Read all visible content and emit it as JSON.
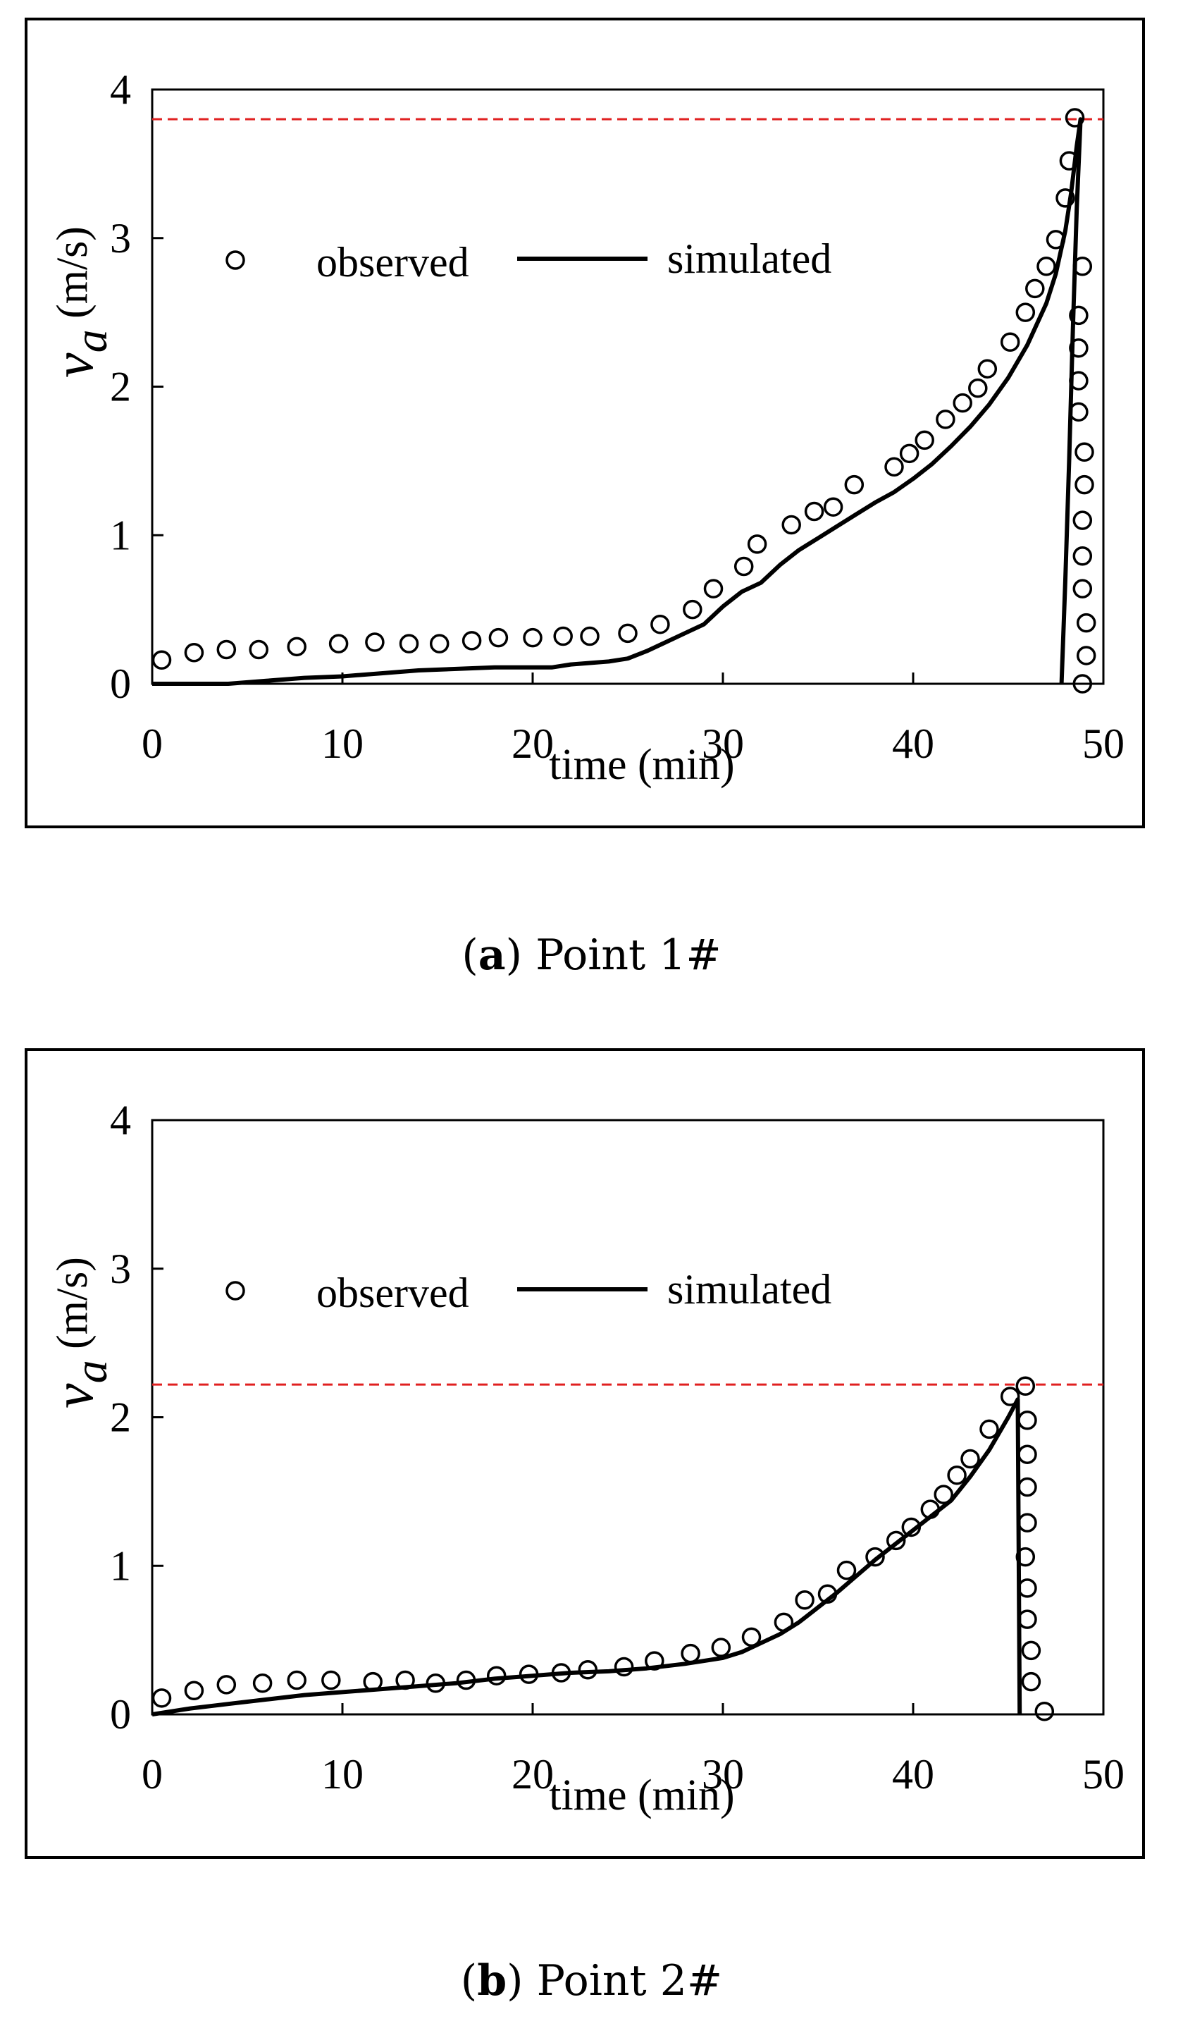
{
  "chart_data": [
    {
      "id": "a",
      "type": "scatter",
      "caption": {
        "open": "(",
        "tag": "a",
        "close": ")",
        "text": " Point 1#"
      },
      "xlabel": "time (min)",
      "ylabel_symbol": "v",
      "ylabel_sub": "a",
      "ylabel_unit": " (m/s)",
      "xlim": [
        0,
        50
      ],
      "ylim": [
        0,
        4
      ],
      "xticks": [
        0,
        10,
        20,
        30,
        40,
        50
      ],
      "yticks": [
        0,
        1,
        2,
        3,
        4
      ],
      "reference_line": {
        "y": 3.8,
        "color": "#e02020",
        "style": "dashed"
      },
      "legend": {
        "observed": "observed",
        "simulated": "simulated"
      },
      "series": [
        {
          "name": "observed",
          "marker": "open-circle",
          "points": [
            [
              0.5,
              0.16
            ],
            [
              2.2,
              0.21
            ],
            [
              3.9,
              0.23
            ],
            [
              5.6,
              0.23
            ],
            [
              7.6,
              0.25
            ],
            [
              9.8,
              0.27
            ],
            [
              11.7,
              0.28
            ],
            [
              13.5,
              0.27
            ],
            [
              15.1,
              0.27
            ],
            [
              16.8,
              0.29
            ],
            [
              18.2,
              0.31
            ],
            [
              20.0,
              0.31
            ],
            [
              21.6,
              0.32
            ],
            [
              23.0,
              0.32
            ],
            [
              25.0,
              0.34
            ],
            [
              26.7,
              0.4
            ],
            [
              28.4,
              0.5
            ],
            [
              29.5,
              0.64
            ],
            [
              31.1,
              0.79
            ],
            [
              31.8,
              0.94
            ],
            [
              33.6,
              1.07
            ],
            [
              34.8,
              1.16
            ],
            [
              35.8,
              1.19
            ],
            [
              36.9,
              1.34
            ],
            [
              39.0,
              1.46
            ],
            [
              39.8,
              1.55
            ],
            [
              40.6,
              1.64
            ],
            [
              41.7,
              1.78
            ],
            [
              42.6,
              1.89
            ],
            [
              43.4,
              1.99
            ],
            [
              43.9,
              2.12
            ],
            [
              45.1,
              2.3
            ],
            [
              45.9,
              2.5
            ],
            [
              46.4,
              2.66
            ],
            [
              47.0,
              2.81
            ],
            [
              47.5,
              2.99
            ],
            [
              48.0,
              3.27
            ],
            [
              48.2,
              3.52
            ],
            [
              48.5,
              3.81
            ],
            [
              48.9,
              2.81
            ],
            [
              48.7,
              2.48
            ],
            [
              48.7,
              2.26
            ],
            [
              48.7,
              2.04
            ],
            [
              48.7,
              1.83
            ],
            [
              49.0,
              1.56
            ],
            [
              49.0,
              1.34
            ],
            [
              48.9,
              1.1
            ],
            [
              48.9,
              0.86
            ],
            [
              48.9,
              0.64
            ],
            [
              49.1,
              0.41
            ],
            [
              49.1,
              0.19
            ],
            [
              48.9,
              0.0
            ]
          ]
        },
        {
          "name": "simulated",
          "style": "line",
          "points": [
            [
              0,
              0.0
            ],
            [
              2,
              0.0
            ],
            [
              4,
              0.0
            ],
            [
              6,
              0.02
            ],
            [
              8,
              0.04
            ],
            [
              10,
              0.05
            ],
            [
              12,
              0.07
            ],
            [
              14,
              0.09
            ],
            [
              16,
              0.1
            ],
            [
              18,
              0.11
            ],
            [
              20,
              0.11
            ],
            [
              21,
              0.11
            ],
            [
              22,
              0.13
            ],
            [
              24,
              0.15
            ],
            [
              25,
              0.17
            ],
            [
              26,
              0.22
            ],
            [
              27,
              0.28
            ],
            [
              28,
              0.34
            ],
            [
              29,
              0.4
            ],
            [
              30,
              0.52
            ],
            [
              31,
              0.62
            ],
            [
              32,
              0.68
            ],
            [
              33,
              0.8
            ],
            [
              34,
              0.9
            ],
            [
              35,
              0.98
            ],
            [
              36,
              1.06
            ],
            [
              37,
              1.14
            ],
            [
              38,
              1.22
            ],
            [
              39,
              1.29
            ],
            [
              40,
              1.38
            ],
            [
              41,
              1.48
            ],
            [
              42,
              1.6
            ],
            [
              43,
              1.73
            ],
            [
              44,
              1.88
            ],
            [
              45,
              2.06
            ],
            [
              46,
              2.28
            ],
            [
              47,
              2.56
            ],
            [
              47.5,
              2.76
            ],
            [
              48,
              3.05
            ],
            [
              48.3,
              3.3
            ],
            [
              48.6,
              3.62
            ],
            [
              48.8,
              3.8
            ],
            [
              48.6,
              3.2
            ],
            [
              48.4,
              2.4
            ],
            [
              48.2,
              1.5
            ],
            [
              48.0,
              0.7
            ],
            [
              47.8,
              0.0
            ]
          ]
        }
      ]
    },
    {
      "id": "b",
      "type": "scatter",
      "caption": {
        "open": "(",
        "tag": "b",
        "close": ")",
        "text": " Point 2#"
      },
      "xlabel": "time (min)",
      "ylabel_symbol": "v",
      "ylabel_sub": "a",
      "ylabel_unit": " (m/s)",
      "xlim": [
        0,
        50
      ],
      "ylim": [
        0,
        4
      ],
      "xticks": [
        0,
        10,
        20,
        30,
        40,
        50
      ],
      "yticks": [
        0,
        1,
        2,
        3,
        4
      ],
      "reference_line": {
        "y": 2.22,
        "color": "#e02020",
        "style": "dashed"
      },
      "legend": {
        "observed": "observed",
        "simulated": "simulated"
      },
      "series": [
        {
          "name": "observed",
          "marker": "open-circle",
          "points": [
            [
              0.5,
              0.11
            ],
            [
              2.2,
              0.16
            ],
            [
              3.9,
              0.2
            ],
            [
              5.8,
              0.21
            ],
            [
              7.6,
              0.23
            ],
            [
              9.4,
              0.23
            ],
            [
              11.6,
              0.22
            ],
            [
              13.3,
              0.23
            ],
            [
              14.9,
              0.21
            ],
            [
              16.5,
              0.23
            ],
            [
              18.1,
              0.26
            ],
            [
              19.8,
              0.27
            ],
            [
              21.5,
              0.28
            ],
            [
              22.9,
              0.3
            ],
            [
              24.8,
              0.32
            ],
            [
              26.4,
              0.36
            ],
            [
              28.3,
              0.41
            ],
            [
              29.9,
              0.45
            ],
            [
              31.5,
              0.52
            ],
            [
              33.2,
              0.62
            ],
            [
              34.3,
              0.77
            ],
            [
              35.5,
              0.81
            ],
            [
              36.5,
              0.97
            ],
            [
              38.0,
              1.06
            ],
            [
              39.1,
              1.17
            ],
            [
              39.9,
              1.26
            ],
            [
              40.9,
              1.38
            ],
            [
              41.6,
              1.48
            ],
            [
              42.3,
              1.61
            ],
            [
              43.0,
              1.72
            ],
            [
              44.0,
              1.92
            ],
            [
              45.1,
              2.14
            ],
            [
              45.9,
              2.21
            ],
            [
              46.0,
              1.98
            ],
            [
              46.0,
              1.75
            ],
            [
              46.0,
              1.53
            ],
            [
              46.0,
              1.29
            ],
            [
              45.9,
              1.06
            ],
            [
              46.0,
              0.85
            ],
            [
              46.0,
              0.64
            ],
            [
              46.2,
              0.43
            ],
            [
              46.2,
              0.22
            ],
            [
              46.9,
              0.02
            ]
          ]
        },
        {
          "name": "simulated",
          "style": "line",
          "points": [
            [
              0,
              0.0
            ],
            [
              2,
              0.04
            ],
            [
              4,
              0.07
            ],
            [
              6,
              0.1
            ],
            [
              8,
              0.13
            ],
            [
              10,
              0.15
            ],
            [
              12,
              0.17
            ],
            [
              14,
              0.19
            ],
            [
              16,
              0.21
            ],
            [
              18,
              0.24
            ],
            [
              20,
              0.26
            ],
            [
              22,
              0.28
            ],
            [
              24,
              0.29
            ],
            [
              26,
              0.31
            ],
            [
              28,
              0.34
            ],
            [
              30,
              0.38
            ],
            [
              31,
              0.42
            ],
            [
              32,
              0.48
            ],
            [
              33,
              0.54
            ],
            [
              34,
              0.62
            ],
            [
              35,
              0.72
            ],
            [
              36,
              0.82
            ],
            [
              37,
              0.93
            ],
            [
              38,
              1.04
            ],
            [
              39,
              1.14
            ],
            [
              40,
              1.24
            ],
            [
              41,
              1.34
            ],
            [
              42,
              1.44
            ],
            [
              43,
              1.6
            ],
            [
              44,
              1.78
            ],
            [
              45,
              2.0
            ],
            [
              45.5,
              2.12
            ],
            [
              45.6,
              0.0
            ]
          ]
        }
      ]
    }
  ]
}
